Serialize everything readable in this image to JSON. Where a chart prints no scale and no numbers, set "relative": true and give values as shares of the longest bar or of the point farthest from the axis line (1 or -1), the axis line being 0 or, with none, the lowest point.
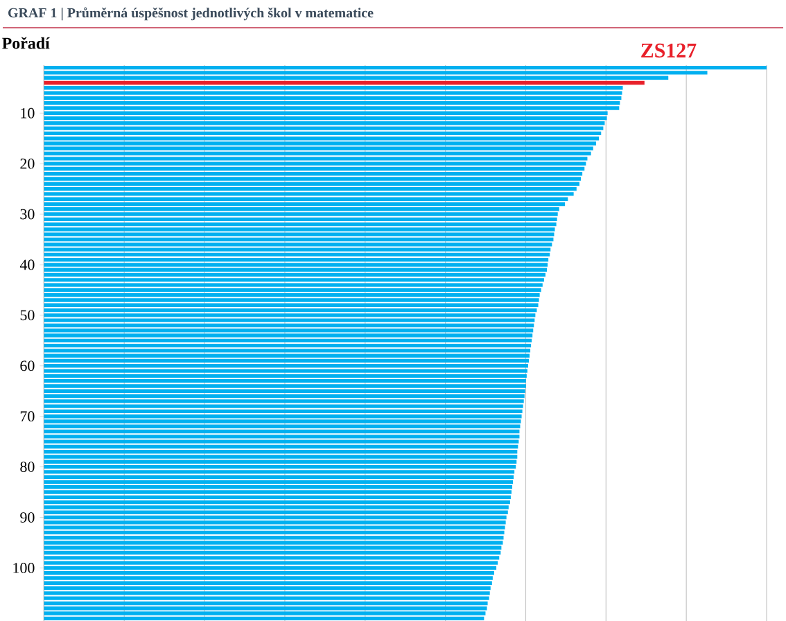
{
  "chart_data": {
    "type": "bar",
    "orientation": "horizontal",
    "relative": true,
    "grid": "x",
    "title": "GRAF 1 | Průměrná úspěšnost jednotlivých škol v matematice",
    "ylabel": "Pořadí",
    "annotations": [
      "ZS127"
    ],
    "categories": [
      null,
      null,
      null,
      null,
      null,
      null,
      null,
      null,
      null,
      "10",
      null,
      null,
      null,
      null,
      null,
      null,
      null,
      null,
      null,
      "20",
      null,
      null,
      null,
      null,
      null,
      null,
      null,
      null,
      null,
      "30",
      null,
      null,
      null,
      null,
      null,
      null,
      null,
      null,
      null,
      "40",
      null,
      null,
      null,
      null,
      null,
      null,
      null,
      null,
      null,
      "50",
      null,
      null,
      null,
      null,
      null,
      null,
      null,
      null,
      null,
      "60",
      null,
      null,
      null,
      null,
      null,
      null,
      null,
      null,
      null,
      "70",
      null,
      null,
      null,
      null,
      null,
      null,
      null,
      null,
      null,
      "80",
      null,
      null,
      null,
      null,
      null,
      null,
      null,
      null,
      null,
      "90",
      null,
      null,
      null,
      null,
      null,
      null,
      null,
      null,
      null,
      "100",
      null,
      null,
      null,
      null,
      null,
      null,
      null,
      null,
      null,
      null
    ],
    "values": [
      1.0,
      0.918,
      0.864,
      0.831,
      0.801,
      0.8,
      0.799,
      0.797,
      0.796,
      0.78,
      0.779,
      0.776,
      0.774,
      0.771,
      0.768,
      0.764,
      0.76,
      0.757,
      0.752,
      0.75,
      0.748,
      0.745,
      0.743,
      0.741,
      0.737,
      0.733,
      0.725,
      0.721,
      0.713,
      0.711,
      0.71,
      0.709,
      0.707,
      0.706,
      0.705,
      0.703,
      0.701,
      0.7,
      0.698,
      0.697,
      0.696,
      0.694,
      0.692,
      0.69,
      0.688,
      0.686,
      0.685,
      0.684,
      0.682,
      0.68,
      0.679,
      0.678,
      0.677,
      0.676,
      0.675,
      0.674,
      0.673,
      0.672,
      0.671,
      0.67,
      0.669,
      0.668,
      0.667,
      0.667,
      0.666,
      0.665,
      0.664,
      0.663,
      0.662,
      0.661,
      0.66,
      0.659,
      0.658,
      0.658,
      0.657,
      0.656,
      0.655,
      0.655,
      0.654,
      0.653,
      0.651,
      0.65,
      0.649,
      0.648,
      0.647,
      0.646,
      0.645,
      0.643,
      0.642,
      0.64,
      0.639,
      0.638,
      0.637,
      0.636,
      0.635,
      0.633,
      0.632,
      0.63,
      0.628,
      0.626,
      0.623,
      0.621,
      0.62,
      0.618,
      0.617,
      0.616,
      0.614,
      0.613,
      0.611,
      0.609
    ],
    "colors": [
      "#00b0f0",
      "#00b0f0",
      "#00b0f0",
      "#e8202a",
      "#00b0f0",
      "#00b0f0",
      "#00b0f0",
      "#00b0f0",
      "#00b0f0",
      "#00b0f0",
      "#00b0f0",
      "#00b0f0",
      "#00b0f0",
      "#00b0f0",
      "#00b0f0",
      "#00b0f0",
      "#00b0f0",
      "#00b0f0",
      "#00b0f0",
      "#00b0f0",
      "#00b0f0",
      "#00b0f0",
      "#00b0f0",
      "#00b0f0",
      "#00b0f0",
      "#00b0f0",
      "#00b0f0",
      "#00b0f0",
      "#00b0f0",
      "#00b0f0",
      "#00b0f0",
      "#00b0f0",
      "#00b0f0",
      "#00b0f0",
      "#00b0f0",
      "#00b0f0",
      "#00b0f0",
      "#00b0f0",
      "#00b0f0",
      "#00b0f0",
      "#00b0f0",
      "#00b0f0",
      "#00b0f0",
      "#00b0f0",
      "#00b0f0",
      "#00b0f0",
      "#00b0f0",
      "#00b0f0",
      "#00b0f0",
      "#00b0f0",
      "#00b0f0",
      "#00b0f0",
      "#00b0f0",
      "#00b0f0",
      "#00b0f0",
      "#00b0f0",
      "#00b0f0",
      "#00b0f0",
      "#00b0f0",
      "#00b0f0",
      "#00b0f0",
      "#00b0f0",
      "#00b0f0",
      "#00b0f0",
      "#00b0f0",
      "#00b0f0",
      "#00b0f0",
      "#00b0f0",
      "#00b0f0",
      "#00b0f0",
      "#00b0f0",
      "#00b0f0",
      "#00b0f0",
      "#00b0f0",
      "#00b0f0",
      "#00b0f0",
      "#00b0f0",
      "#00b0f0",
      "#00b0f0",
      "#00b0f0",
      "#00b0f0",
      "#00b0f0",
      "#00b0f0",
      "#00b0f0",
      "#00b0f0",
      "#00b0f0",
      "#00b0f0",
      "#00b0f0",
      "#00b0f0",
      "#00b0f0",
      "#00b0f0",
      "#00b0f0",
      "#00b0f0",
      "#00b0f0",
      "#00b0f0",
      "#00b0f0",
      "#00b0f0",
      "#00b0f0",
      "#00b0f0",
      "#00b0f0",
      "#00b0f0",
      "#00b0f0",
      "#00b0f0",
      "#00b0f0",
      "#00b0f0",
      "#00b0f0",
      "#00b0f0",
      "#00b0f0",
      "#00b0f0",
      "#00b0f0"
    ]
  }
}
